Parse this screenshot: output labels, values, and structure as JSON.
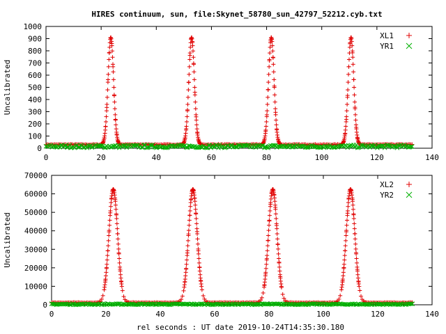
{
  "figure": {
    "title": "HIRES continuum, sun, file:Skynet_58780_sun_42797_52212.cyb.txt",
    "xlabel": "rel seconds : UT date 2019-10-24T14:35:30.180"
  },
  "colors": {
    "XL": "#e00000",
    "YR": "#00b000",
    "axis": "#000000"
  },
  "chart_data": [
    {
      "type": "scatter",
      "ylabel": "Uncalibrated",
      "xlim": [
        0,
        140
      ],
      "ylim": [
        0,
        1000
      ],
      "xticks": [
        0,
        20,
        40,
        60,
        80,
        100,
        120,
        140
      ],
      "yticks": [
        0,
        100,
        200,
        300,
        400,
        500,
        600,
        700,
        800,
        900,
        1000
      ],
      "grid": false,
      "legend_position": "top-right",
      "series": [
        {
          "name": "XL1",
          "marker": "+",
          "color": "#e00000",
          "x_range": [
            0,
            133
          ],
          "baseline": 30,
          "peak_centers": [
            23.5,
            52.8,
            81.7,
            110.6
          ],
          "peak_value": 910,
          "peak_halfwidth": 1.0
        },
        {
          "name": "YR1",
          "marker": "x",
          "color": "#00b000",
          "x_range": [
            0,
            133
          ],
          "baseline": 15,
          "noise": 12
        }
      ]
    },
    {
      "type": "scatter",
      "ylabel": "Uncalibrated",
      "xlim": [
        0,
        140
      ],
      "ylim": [
        0,
        70000
      ],
      "xticks": [
        0,
        20,
        40,
        60,
        80,
        100,
        120,
        140
      ],
      "yticks": [
        0,
        10000,
        20000,
        30000,
        40000,
        50000,
        60000,
        70000
      ],
      "grid": false,
      "legend_position": "top-right",
      "series": [
        {
          "name": "XL2",
          "marker": "+",
          "color": "#e00000",
          "x_range": [
            0,
            133
          ],
          "baseline": 1200,
          "peak_centers": [
            22.7,
            52.0,
            81.4,
            110.0
          ],
          "peak_value": 62500,
          "peak_halfwidth": 1.6
        },
        {
          "name": "YR2",
          "marker": "x",
          "color": "#00b000",
          "x_range": [
            0,
            133
          ],
          "baseline": 300,
          "noise": 300
        }
      ]
    }
  ]
}
